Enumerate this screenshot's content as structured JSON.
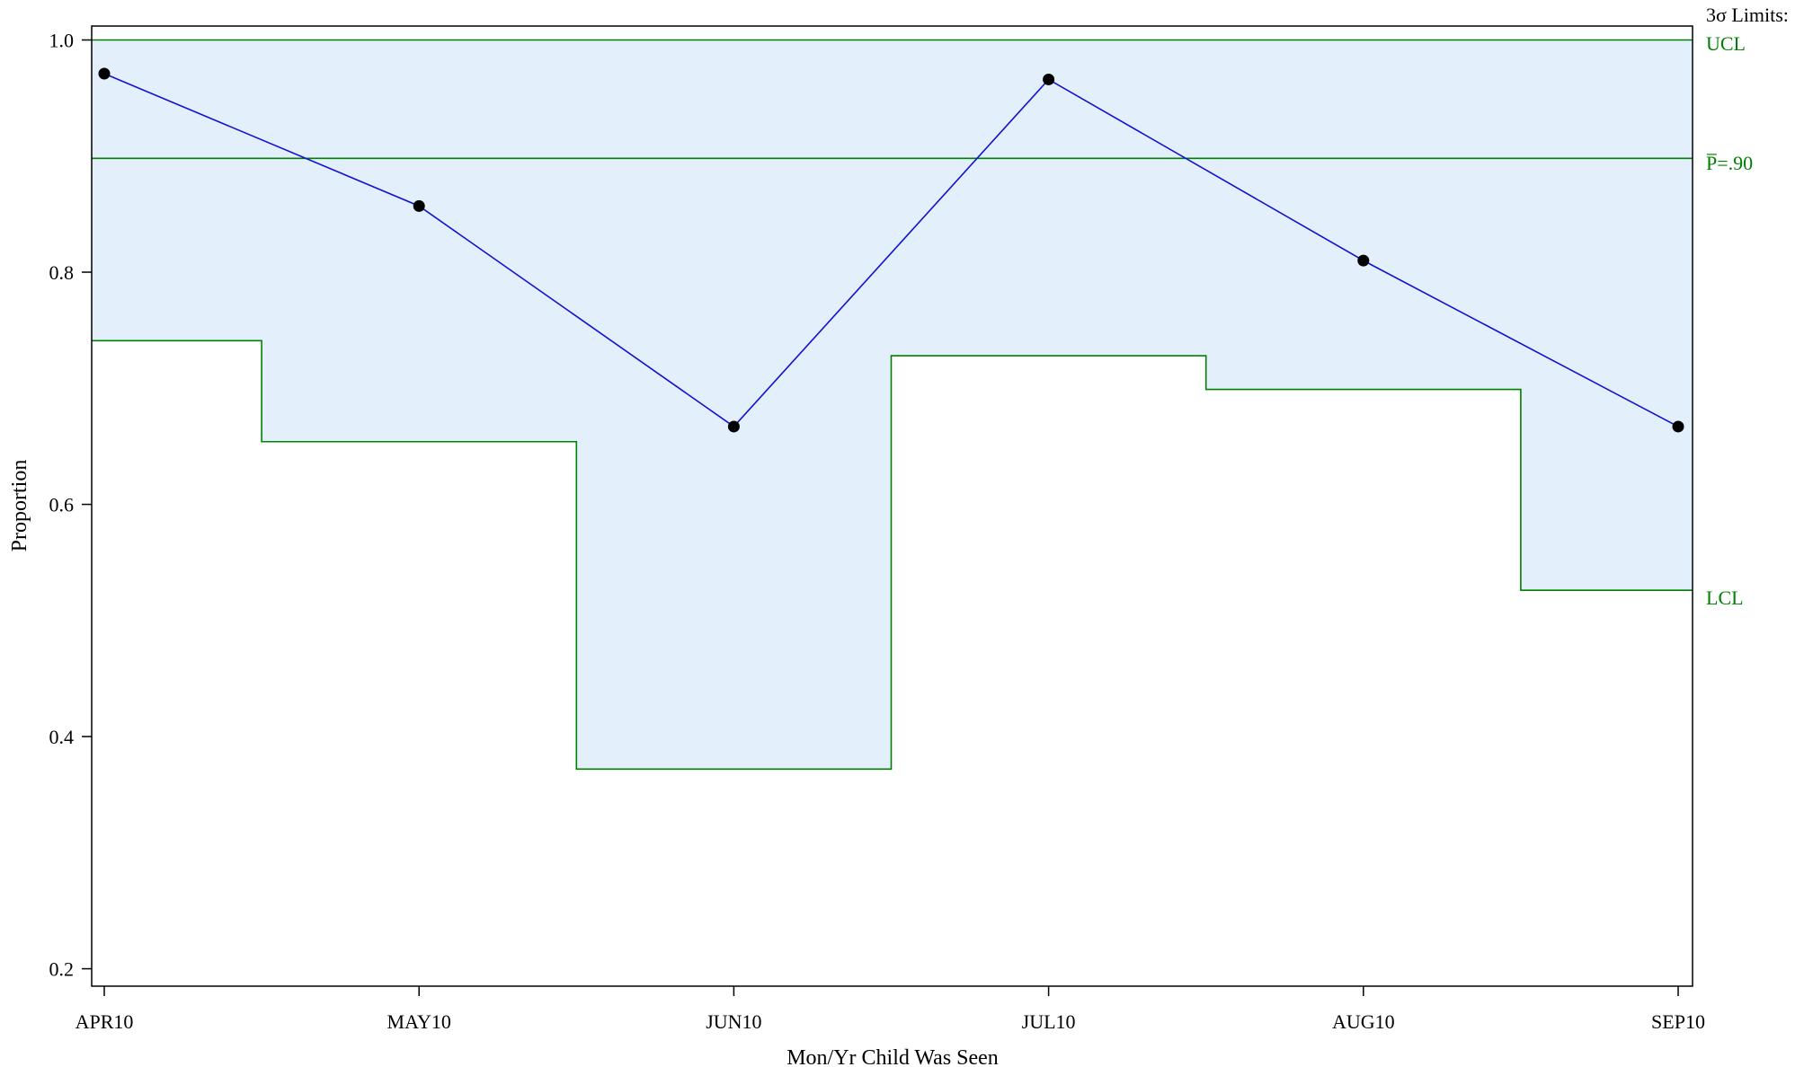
{
  "chart_data": {
    "type": "line",
    "subtype": "p-chart",
    "xlabel": "Mon/Yr Child Was Seen",
    "ylabel": "Proportion",
    "categories": [
      "APR10",
      "MAY10",
      "JUN10",
      "JUL10",
      "AUG10",
      "SEP10"
    ],
    "ylim": [
      0.185,
      1.012
    ],
    "yticks": [
      {
        "value": 0.2,
        "label": "0.2"
      },
      {
        "value": 0.4,
        "label": "0.4"
      },
      {
        "value": 0.6,
        "label": "0.6"
      },
      {
        "value": 0.8,
        "label": "0.8"
      },
      {
        "value": 1.0,
        "label": "1.0"
      }
    ],
    "series": [
      {
        "values": [
          0.971,
          0.857,
          0.667,
          0.966,
          0.81,
          0.667
        ]
      }
    ],
    "ucl": [
      1.0,
      1.0,
      1.0,
      1.0,
      1.0,
      1.0
    ],
    "lcl": [
      0.741,
      0.654,
      0.372,
      0.728,
      0.699,
      0.526
    ],
    "center": 0.898,
    "limits_header": "3σ Limits:",
    "ucl_label": "UCL",
    "center_label": "P̅=.90",
    "lcl_label": "LCL",
    "grid": false,
    "colors": {
      "line": "#1010d0",
      "marker": "#000000",
      "limits": "#008000",
      "band": "#e3f0fc",
      "frame": "#000000"
    }
  }
}
